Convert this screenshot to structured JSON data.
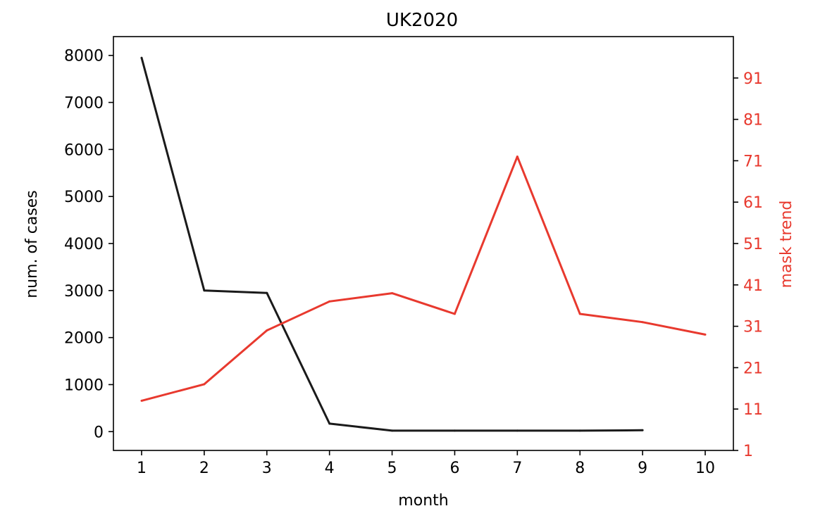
{
  "chart_data": {
    "type": "line",
    "title": "UK2020",
    "xlabel": "month",
    "ylabel": "num. of cases",
    "y2label": "mask trend",
    "x_ticks": [
      "1",
      "2",
      "3",
      "4",
      "5",
      "6",
      "7",
      "8",
      "9",
      "10"
    ],
    "y_ticks": [
      "0",
      "1000",
      "2000",
      "3000",
      "4000",
      "5000",
      "6000",
      "7000",
      "8000"
    ],
    "y2_ticks": [
      "1",
      "11",
      "21",
      "31",
      "41",
      "51",
      "61",
      "71",
      "81",
      "91"
    ],
    "xlim": [
      0.55,
      10.45
    ],
    "ylim": [
      -400,
      8400
    ],
    "y2lim": [
      1,
      101
    ],
    "grid": false,
    "colors": {
      "cases": "#1a1a1a",
      "mask": "#e8392e",
      "axis": "#000000"
    },
    "series": [
      {
        "key": "cases",
        "axis": "left",
        "x": [
          1,
          2,
          3,
          4,
          5,
          6,
          7,
          8,
          9
        ],
        "values": [
          7950,
          3000,
          2950,
          170,
          20,
          20,
          20,
          20,
          30
        ]
      },
      {
        "key": "mask",
        "axis": "right",
        "x": [
          1,
          2,
          3,
          4,
          5,
          6,
          7,
          8,
          9,
          10
        ],
        "values": [
          13,
          17,
          30,
          37,
          39,
          34,
          72,
          34,
          32,
          29
        ]
      }
    ]
  }
}
